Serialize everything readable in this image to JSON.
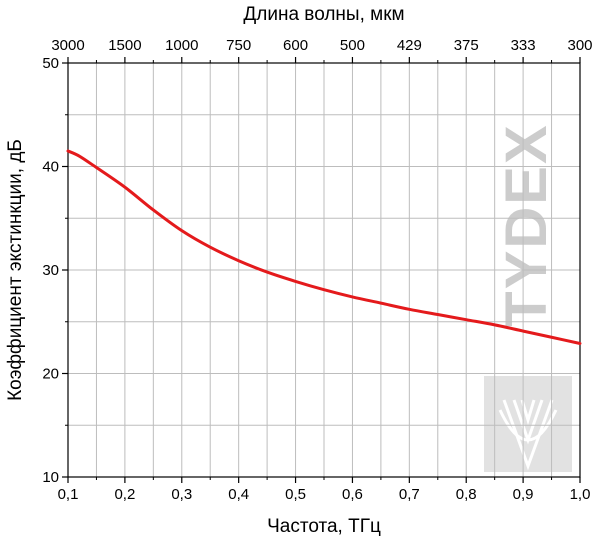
{
  "chart_data": {
    "type": "line",
    "xlabel": "Частота, ТГц",
    "ylabel": "Коэффициент экстинкции, дБ",
    "top_axis_label": "Длина волны, мкм",
    "xlim": [
      0.1,
      1.0
    ],
    "ylim": [
      10,
      50
    ],
    "x_ticks": [
      0.1,
      0.2,
      0.3,
      0.4,
      0.5,
      0.6,
      0.7,
      0.8,
      0.9,
      1.0
    ],
    "x_tick_labels": [
      "0,1",
      "0,2",
      "0,3",
      "0,4",
      "0,5",
      "0,6",
      "0,7",
      "0,8",
      "0,9",
      "1,0"
    ],
    "y_ticks": [
      10,
      20,
      30,
      40,
      50
    ],
    "y_tick_labels": [
      "10",
      "20",
      "30",
      "40",
      "50"
    ],
    "top_ticks": [
      0.1,
      0.2,
      0.3,
      0.4,
      0.5,
      0.6,
      0.7,
      0.8,
      0.9,
      1.0
    ],
    "top_tick_labels": [
      "3000",
      "1500",
      "1000",
      "750",
      "600",
      "500",
      "429",
      "375",
      "333",
      "300"
    ],
    "grid": true,
    "series": [
      {
        "color": "#e41a1c",
        "x": [
          0.1,
          0.12,
          0.15,
          0.2,
          0.25,
          0.3,
          0.35,
          0.4,
          0.45,
          0.5,
          0.55,
          0.6,
          0.65,
          0.7,
          0.75,
          0.8,
          0.85,
          0.9,
          0.95,
          1.0
        ],
        "y": [
          41.5,
          41.0,
          39.9,
          38.0,
          35.8,
          33.8,
          32.2,
          30.9,
          29.8,
          28.9,
          28.1,
          27.4,
          26.8,
          26.2,
          25.7,
          25.2,
          24.7,
          24.1,
          23.5,
          22.9
        ]
      }
    ]
  },
  "watermark": {
    "text": "TYDEX",
    "color": "#cccccc",
    "logo_name": "tydex-logo"
  }
}
